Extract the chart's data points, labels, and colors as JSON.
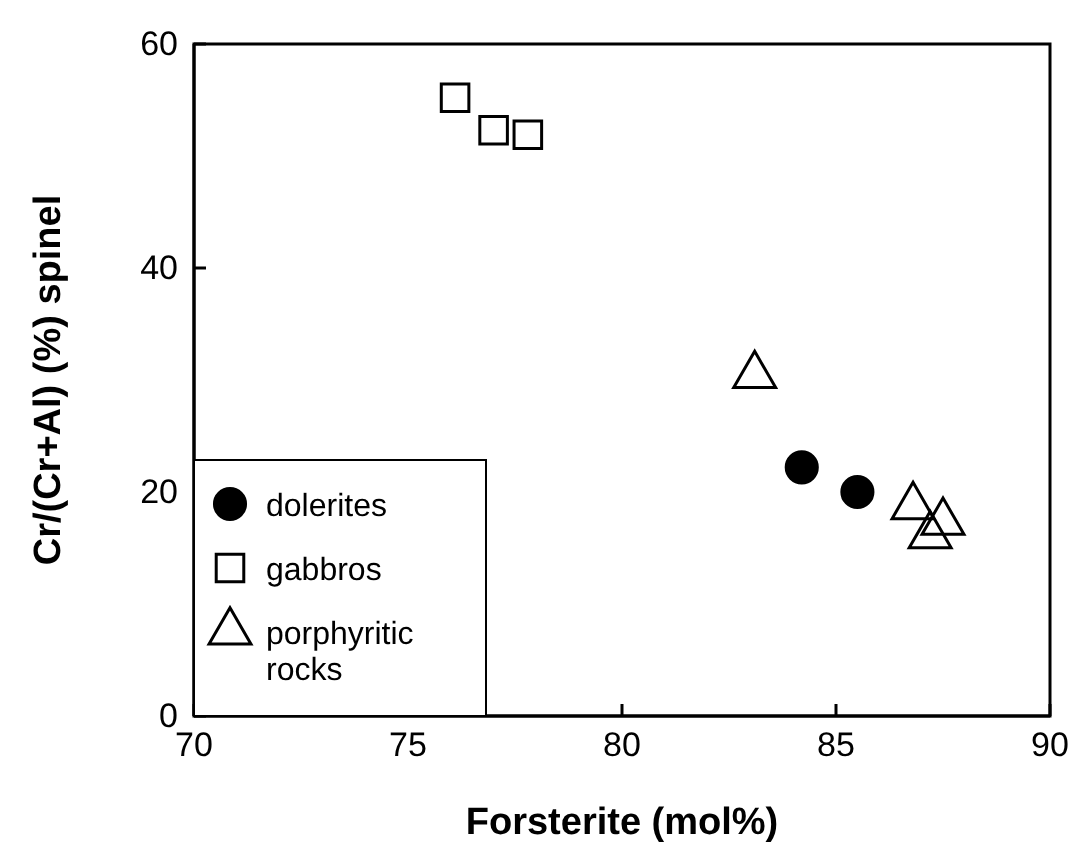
{
  "chart_data": {
    "type": "scatter",
    "xlabel": "Forsterite (mol%)",
    "ylabel": "Cr/(Cr+Al) (%) spinel",
    "xlim": [
      70,
      90
    ],
    "xticks": [
      70,
      75,
      80,
      85,
      90
    ],
    "ylim": [
      0,
      60
    ],
    "yticks": [
      0,
      20,
      40,
      60
    ],
    "legend": "bottom left",
    "grid": false,
    "series": [
      {
        "name": "dolerites",
        "color": "#000000",
        "marker": "circle",
        "x": [
          84.2,
          85.5
        ],
        "values": [
          22.2,
          20.0
        ]
      },
      {
        "name": "gabbros",
        "color": "#000000",
        "marker": "square",
        "x": [
          76.1,
          77.0,
          77.8
        ],
        "values": [
          55.2,
          52.3,
          51.9
        ]
      },
      {
        "name": "porphyritic rocks",
        "color": "#000000",
        "marker": "triangle",
        "x": [
          83.1,
          86.8,
          87.5,
          87.2
        ],
        "values": [
          30.4,
          18.7,
          17.3,
          16.1
        ]
      }
    ]
  }
}
